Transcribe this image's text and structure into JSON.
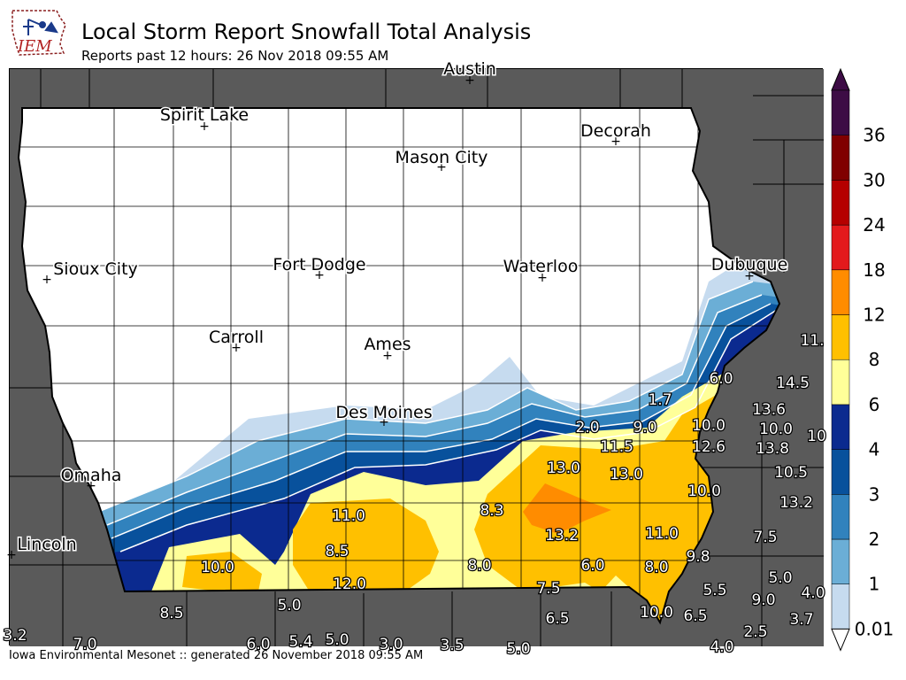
{
  "header": {
    "logo_text": "IEM",
    "title": "Local Storm Report Snowfall Total Analysis",
    "subtitle": "Reports past 12 hours: 26 Nov 2018 09:55 AM"
  },
  "footer": {
    "text": "Iowa Environmental Mesonet :: generated 26 November 2018 09:55 AM"
  },
  "colors": {
    "background_state": "#5a5a5a",
    "iowa_fill": "#ffffff",
    "county_lines": "#000000"
  },
  "legend": {
    "levels": [
      "0.01",
      "1",
      "2",
      "3",
      "4",
      "6",
      "8",
      "12",
      "18",
      "24",
      "30",
      "36"
    ],
    "colors": [
      "#c6dbef",
      "#6baed6",
      "#3182bd",
      "#08519c",
      "#0b2a8f",
      "#ffff99",
      "#ffc000",
      "#ff8c00",
      "#e31a1c",
      "#b50000",
      "#800000",
      "#3d0c45"
    ]
  },
  "cities": [
    {
      "name": "Austin"
    },
    {
      "name": "Spirit Lake"
    },
    {
      "name": "Decorah"
    },
    {
      "name": "Mason City"
    },
    {
      "name": "Sioux City"
    },
    {
      "name": "Fort Dodge"
    },
    {
      "name": "Waterloo"
    },
    {
      "name": "Dubuque"
    },
    {
      "name": "Carroll"
    },
    {
      "name": "Ames"
    },
    {
      "name": "Des Moines"
    },
    {
      "name": "Omaha"
    },
    {
      "name": "Lincoln"
    }
  ],
  "reports": [
    "11.",
    "6.0",
    "14.5",
    "1.7",
    "13.6",
    "2.0",
    "9.0",
    "10.0",
    "10.0",
    "12.6",
    "13.8",
    "10",
    "11.5",
    "13.0",
    "13.0",
    "10.5",
    "10.0",
    "13.2",
    "11.0",
    "8.3",
    "13.2",
    "11.0",
    "7.5",
    "10.0",
    "8.5",
    "8.0",
    "6.0",
    "8.0",
    "9.8",
    "12.0",
    "7.5",
    "5.5",
    "5.0",
    "8.5",
    "5.0",
    "9.0",
    "4.0",
    "6.5",
    "10.0",
    "6.5",
    "3.7",
    "2.5",
    "3.2",
    "7.0",
    "6.0",
    "5.4",
    "5.0",
    "3.0",
    "3.5",
    "5.0",
    "4.0"
  ]
}
